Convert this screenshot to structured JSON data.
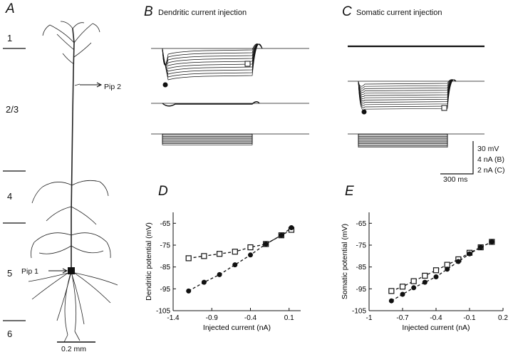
{
  "panels": {
    "A": {
      "letter": "A"
    },
    "B": {
      "letter": "B",
      "title": "Dendritic current injection"
    },
    "C": {
      "letter": "C",
      "title": "Somatic current injection"
    },
    "D": {
      "letter": "D"
    },
    "E": {
      "letter": "E"
    }
  },
  "layers": [
    "1",
    "2/3",
    "4",
    "5",
    "6"
  ],
  "pipettes": {
    "pip1": "Pip 1",
    "pip2": "Pip 2"
  },
  "scalebars": {
    "neuron": "0.2 mm",
    "traces_v": "30 mV",
    "traces_b": "4 nA (B)",
    "traces_c": "2 nA (C)",
    "traces_t": "300 ms"
  },
  "chart_data": [
    {
      "type": "scatter",
      "panel": "D",
      "xlabel": "Injected current (nA)",
      "ylabel": "Dendritic potential (mV)",
      "xlim": [
        -1.4,
        0.25
      ],
      "ylim": [
        -105,
        -60
      ],
      "xticks": [
        "-1.4",
        "-0.9",
        "-0.4",
        "0.1"
      ],
      "yticks": [
        "-65",
        "-75",
        "-85",
        "-95",
        "-105"
      ],
      "series": [
        {
          "marker": "open-square",
          "x": [
            -1.2,
            -1.0,
            -0.8,
            -0.6,
            -0.4,
            -0.2,
            0.0,
            0.13
          ],
          "y": [
            -81,
            -80,
            -79,
            -78,
            -76,
            -74.5,
            -70.5,
            -68
          ]
        },
        {
          "marker": "filled-circle",
          "x": [
            -1.2,
            -1.0,
            -0.8,
            -0.6,
            -0.4,
            -0.2,
            0.0,
            0.13
          ],
          "y": [
            -96,
            -92,
            -88.5,
            -84,
            -79.5,
            -74.5,
            -70.5,
            -67
          ]
        }
      ]
    },
    {
      "type": "scatter",
      "panel": "E",
      "xlabel": "Injected current (nA)",
      "ylabel": "Somatic potential (mV)",
      "xlim": [
        -1.0,
        0.2
      ],
      "ylim": [
        -105,
        -60
      ],
      "xticks": [
        "-1",
        "-0.7",
        "-0.4",
        "-0.1",
        "0.2"
      ],
      "yticks": [
        "-65",
        "-75",
        "-85",
        "-95",
        "-105"
      ],
      "series": [
        {
          "marker": "open-square",
          "x": [
            -0.8,
            -0.7,
            -0.6,
            -0.5,
            -0.4,
            -0.3,
            -0.2,
            -0.1,
            0.0,
            0.1
          ],
          "y": [
            -96,
            -94,
            -91.5,
            -89,
            -86.5,
            -84,
            -81.5,
            -78.5,
            -76,
            -73.5
          ]
        },
        {
          "marker": "filled-circle",
          "x": [
            -0.8,
            -0.7,
            -0.6,
            -0.5,
            -0.4,
            -0.3,
            -0.2,
            -0.1,
            0.0,
            0.1
          ],
          "y": [
            -100.5,
            -97.5,
            -94.5,
            -92,
            -89.5,
            -86,
            -82.5,
            -79,
            -76,
            -73.5
          ]
        }
      ]
    }
  ]
}
